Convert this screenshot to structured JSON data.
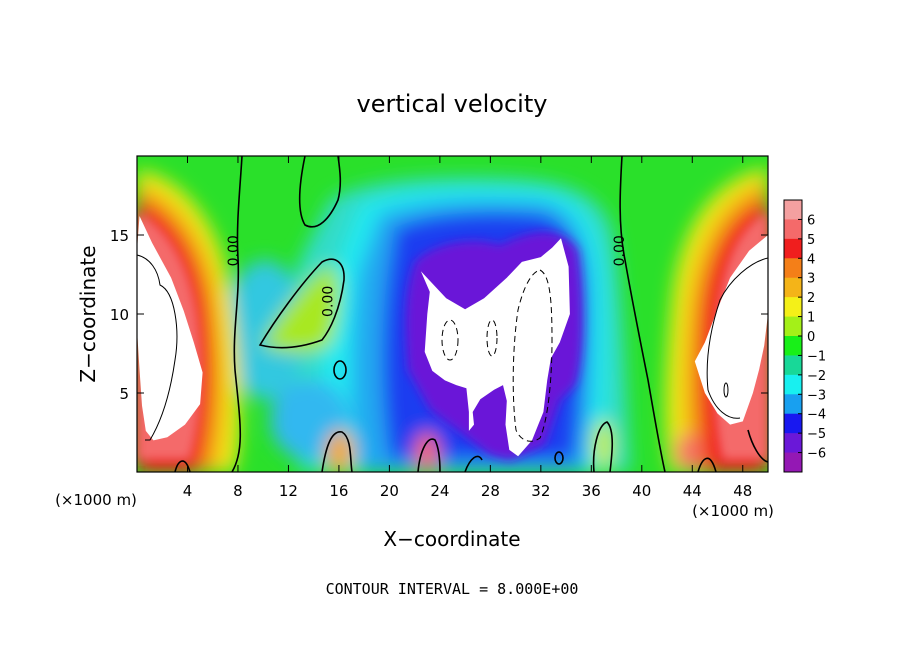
{
  "chart_data": {
    "type": "heatmap",
    "title": "vertical velocity",
    "xlabel": "X−coordinate",
    "ylabel": "Z−coordinate",
    "x_unit_left": "(×1000 m)",
    "x_unit_right": "(×1000 m)",
    "xlim": [
      0,
      50
    ],
    "ylim": [
      0,
      20
    ],
    "xticks": [
      4,
      8,
      12,
      16,
      20,
      24,
      28,
      32,
      36,
      40,
      44,
      48
    ],
    "yticks": [
      5,
      10,
      15
    ],
    "colorbar": {
      "min": -6,
      "max": 6,
      "ticks": [
        6,
        5,
        4,
        3,
        2,
        1,
        0,
        -1,
        -2,
        -3,
        -4,
        -5,
        -6
      ],
      "tick_labels": [
        "6",
        "5",
        "4",
        "3",
        "2",
        "1",
        "0",
        "−1",
        "−2",
        "−3",
        "−4",
        "−5",
        "−6"
      ],
      "colors": [
        "#f4a0a0",
        "#f46a6a",
        "#f01e1e",
        "#f47f18",
        "#f4b418",
        "#f4f018",
        "#a4f018",
        "#18f018",
        "#18d898",
        "#18f0f0",
        "#18a0f0",
        "#1818f0",
        "#6a18d8",
        "#9418b4"
      ]
    },
    "contour_labels": [
      {
        "text": "0.00",
        "x": 8.0,
        "y": 14.0
      },
      {
        "text": "0.00",
        "x": 15.5,
        "y": 10.8
      },
      {
        "text": "0.00",
        "x": 38.6,
        "y": 14.0
      }
    ],
    "footnote": "CONTOUR INTERVAL = 8.000E+00",
    "white_regions": [
      {
        "name": "left-core",
        "min_value": 6,
        "outline": [
          [
            0.2,
            16.2
          ],
          [
            1.2,
            14.5
          ],
          [
            2.7,
            12.3
          ],
          [
            3.7,
            10.2
          ],
          [
            4.5,
            8.2
          ],
          [
            5.2,
            6.3
          ],
          [
            5.0,
            4.3
          ],
          [
            3.8,
            3.0
          ],
          [
            2.4,
            2.2
          ],
          [
            1.3,
            2.0
          ],
          [
            0.7,
            2.6
          ],
          [
            0.4,
            4.2
          ],
          [
            0.2,
            6.5
          ],
          [
            0.0,
            9.0
          ],
          [
            0.0,
            14.0
          ]
        ]
      },
      {
        "name": "center-core",
        "min_value": -6,
        "outline": [
          [
            22.5,
            12.7
          ],
          [
            24.5,
            11.0
          ],
          [
            26.0,
            10.3
          ],
          [
            27.5,
            11.0
          ],
          [
            29.3,
            12.3
          ],
          [
            30.5,
            13.3
          ],
          [
            32.0,
            13.6
          ],
          [
            32.9,
            14.2
          ],
          [
            33.6,
            14.8
          ],
          [
            34.2,
            13.0
          ],
          [
            34.3,
            10.0
          ],
          [
            33.5,
            8.2
          ],
          [
            32.8,
            7.2
          ],
          [
            32.5,
            5.8
          ],
          [
            32.2,
            3.8
          ],
          [
            31.8,
            3.0
          ],
          [
            31.3,
            2.0
          ],
          [
            30.2,
            1.0
          ],
          [
            29.5,
            1.4
          ],
          [
            29.2,
            3.0
          ],
          [
            29.3,
            4.5
          ],
          [
            29.0,
            5.5
          ],
          [
            28.3,
            5.2
          ],
          [
            27.2,
            4.6
          ],
          [
            26.6,
            3.8
          ],
          [
            26.7,
            3.0
          ],
          [
            26.3,
            2.6
          ],
          [
            26.3,
            3.8
          ],
          [
            26.1,
            5.3
          ],
          [
            25.3,
            5.5
          ],
          [
            24.4,
            5.8
          ],
          [
            23.4,
            6.4
          ],
          [
            22.8,
            7.6
          ],
          [
            23.0,
            10.0
          ],
          [
            23.2,
            11.4
          ]
        ]
      },
      {
        "name": "right-core",
        "min_value": 6,
        "outline": [
          [
            50.0,
            15.0
          ],
          [
            48.5,
            14.0
          ],
          [
            47.0,
            12.3
          ],
          [
            46.0,
            10.3
          ],
          [
            45.0,
            8.2
          ],
          [
            44.2,
            7.0
          ],
          [
            45.0,
            5.0
          ],
          [
            46.0,
            3.7
          ],
          [
            47.0,
            3.0
          ],
          [
            48.0,
            3.2
          ],
          [
            48.8,
            5.0
          ],
          [
            49.3,
            6.5
          ],
          [
            49.7,
            8.0
          ],
          [
            50.0,
            10.0
          ]
        ]
      }
    ]
  }
}
